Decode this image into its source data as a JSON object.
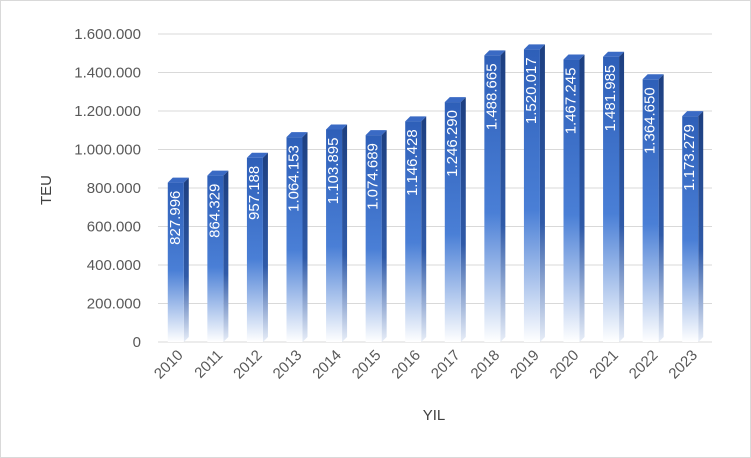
{
  "chart_data": {
    "type": "bar",
    "categories": [
      "2010",
      "2011",
      "2012",
      "2013",
      "2014",
      "2015",
      "2016",
      "2017",
      "2018",
      "2019",
      "2020",
      "2021",
      "2022",
      "2023"
    ],
    "values": [
      827996,
      864329,
      957188,
      1064153,
      1103895,
      1074689,
      1146428,
      1246290,
      1488665,
      1520017,
      1467245,
      1481985,
      1364650,
      1173279
    ],
    "data_labels": [
      "827.996",
      "864.329",
      "957.188",
      "1.064.153",
      "1.103.895",
      "1.074.689",
      "1.146.428",
      "1.246.290",
      "1.488.665",
      "1.520.017",
      "1.467.245",
      "1.481.985",
      "1.364.650",
      "1.173.279"
    ],
    "y_ticks": [
      0,
      200000,
      400000,
      600000,
      800000,
      1000000,
      1200000,
      1400000,
      1600000
    ],
    "y_tick_labels": [
      "0",
      "200.000",
      "400.000",
      "600.000",
      "800.000",
      "1.000.000",
      "1.200.000",
      "1.400.000",
      "1.600.000"
    ],
    "xlabel": "YIL",
    "ylabel": "TEU",
    "ylim": [
      0,
      1600000
    ],
    "grid": true,
    "legend": "none",
    "colors": {
      "bar_top": "#2e5fb8",
      "bar_mid": "#4a7fd6",
      "bar_bottom": "#ffffff",
      "grid": "#d9d9d9"
    }
  }
}
